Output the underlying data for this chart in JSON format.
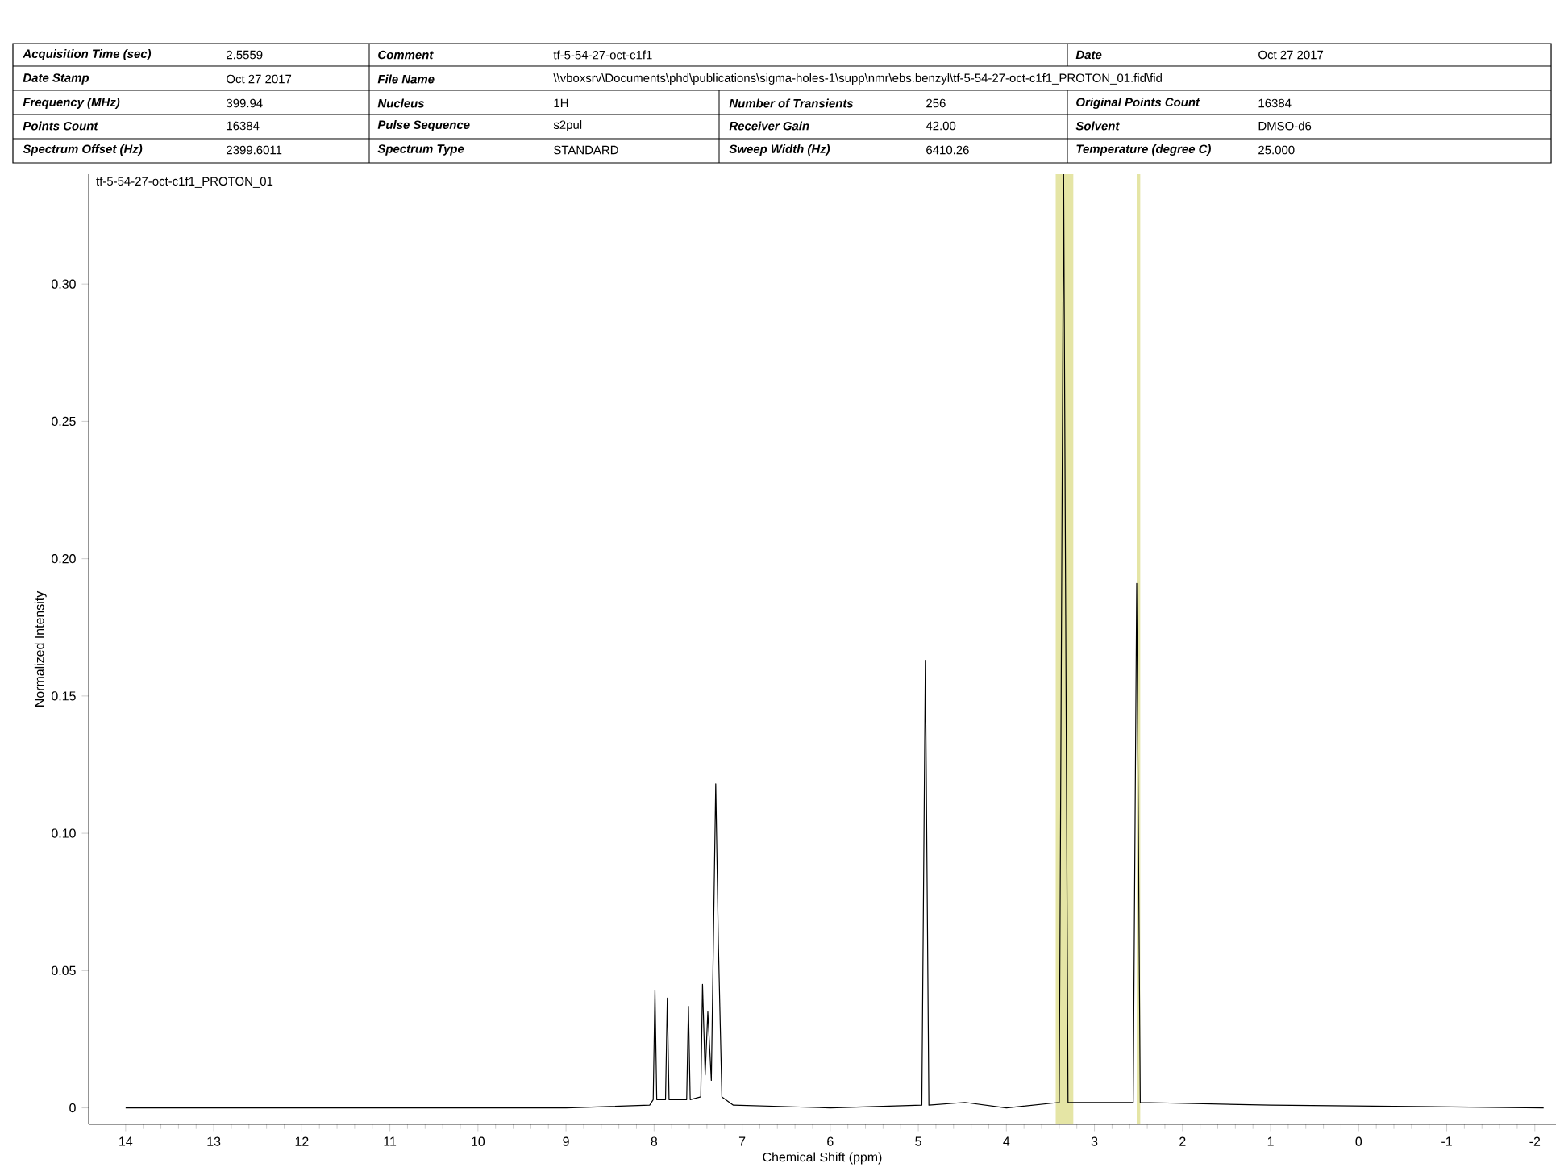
{
  "chart_data": {
    "type": "line",
    "xlabel": "Chemical Shift (ppm)",
    "ylabel": "Normalized Intensity",
    "annotations": [
      "tf-5-54-27-oct-c1f1_PROTON_01",
      "Acquisition Time (sec)",
      "2.5559",
      "Comment",
      "tf-5-54-27-oct-c1f1",
      "Date",
      "Oct 27 2017",
      "Date Stamp",
      "Oct 27 2017",
      "File Name",
      "\\\\vboxsrv\\Documents\\phd\\publications\\sigma-holes-1\\supp\\nmr\\ebs.benzyl\\tf-5-54-27-oct-c1f1_PROTON_01.fid\\fid",
      "Frequency (MHz)",
      "399.94",
      "Nucleus",
      "1H",
      "Number of Transients",
      "256",
      "Original Points Count",
      "16384",
      "Points Count",
      "16384",
      "Pulse Sequence",
      "s2pul",
      "Receiver Gain",
      "42.00",
      "Solvent",
      "DMSO-d6",
      "Spectrum Offset (Hz)",
      "2399.6011",
      "Spectrum Type",
      "STANDARD",
      "Sweep Width (Hz)",
      "6410.26",
      "Temperature (degree C)",
      "25.000"
    ],
    "series": [
      {
        "color": "#000000",
        "x": [
          14.0,
          9.0,
          8.05,
          8.01,
          7.99,
          7.97,
          7.87,
          7.85,
          7.83,
          7.63,
          7.61,
          7.59,
          7.47,
          7.45,
          7.42,
          7.39,
          7.35,
          7.3,
          7.27,
          7.23,
          7.1,
          6.0,
          4.96,
          4.92,
          4.88,
          4.47,
          4.0,
          3.4,
          3.35,
          3.3,
          2.56,
          2.52,
          2.48,
          1.0,
          -2.1
        ],
        "values": [
          0,
          0,
          0.001,
          0.003,
          0.043,
          0.003,
          0.003,
          0.04,
          0.003,
          0.003,
          0.037,
          0.003,
          0.004,
          0.045,
          0.012,
          0.035,
          0.01,
          0.118,
          0.06,
          0.004,
          0.001,
          0,
          0.001,
          0.163,
          0.001,
          0.002,
          0,
          0.002,
          0.34,
          0.002,
          0.002,
          0.191,
          0.002,
          0.001,
          0
        ]
      }
    ],
    "bands": [
      {
        "axis": "x",
        "from": 3.44,
        "to": 3.24,
        "color": "#e5e5a5"
      },
      {
        "axis": "x",
        "from": 2.52,
        "to": 2.48,
        "color": "#e5e5a5"
      }
    ],
    "xlim": [
      14.42,
      -2.24
    ],
    "ylim": [
      -0.006,
      0.34
    ],
    "xticks": [
      14,
      13,
      12,
      11,
      10,
      9,
      8,
      7,
      6,
      5,
      4,
      3,
      2,
      1,
      0,
      -1,
      -2
    ],
    "yticks": [
      0,
      0.05,
      {
        "value": 0.1,
        "label": "0.10"
      },
      0.15,
      {
        "value": 0.2,
        "label": "0.20"
      },
      0.25,
      {
        "value": 0.3,
        "label": "0.30"
      }
    ],
    "grid": false,
    "marker": "none",
    "line_style": "solid"
  }
}
